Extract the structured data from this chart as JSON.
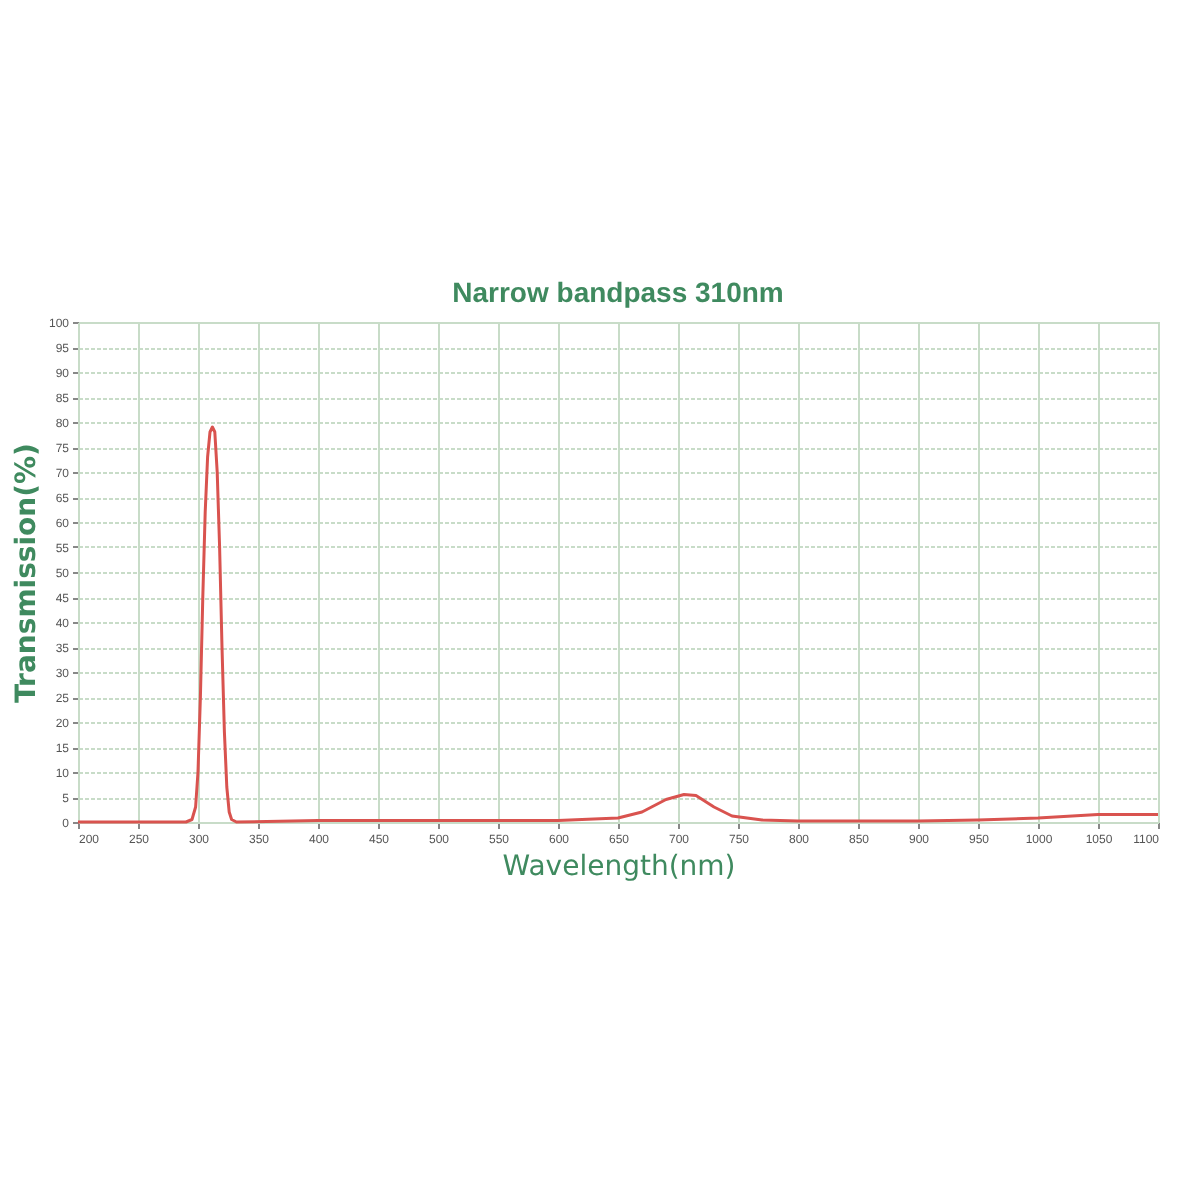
{
  "chart_data": {
    "type": "line",
    "title": "Narrow bandpass 310nm",
    "xlabel": "Wavelength(nm)",
    "ylabel": "Transmission(%)",
    "series": [
      {
        "color": "#d9534f",
        "x": [
          200,
          290,
          295,
          298,
          300,
          302,
          304,
          306,
          308,
          310,
          312,
          314,
          316,
          318,
          320,
          322,
          324,
          326,
          328,
          332,
          400,
          500,
          600,
          650,
          670,
          690,
          705,
          715,
          730,
          745,
          770,
          800,
          900,
          950,
          1000,
          1050,
          1100
        ],
        "values": [
          0,
          0,
          0.5,
          3,
          10,
          25,
          45,
          62,
          73,
          78,
          79,
          78,
          70,
          55,
          35,
          18,
          7,
          2,
          0.5,
          0,
          0.3,
          0.3,
          0.3,
          0.8,
          2,
          4.5,
          5.5,
          5.3,
          3,
          1.2,
          0.4,
          0.2,
          0.2,
          0.4,
          0.8,
          1.5,
          1.5
        ]
      }
    ],
    "xlim": [
      200,
      1100
    ],
    "xticks": [
      200,
      250,
      300,
      350,
      400,
      450,
      500,
      550,
      600,
      650,
      700,
      750,
      800,
      850,
      900,
      950,
      1000,
      1050,
      1100
    ],
    "ylim": [
      0,
      100
    ],
    "yticks": [
      0,
      5,
      10,
      15,
      20,
      25,
      30,
      35,
      40,
      45,
      50,
      55,
      60,
      65,
      70,
      75,
      80,
      85,
      90,
      95,
      100
    ],
    "grid": true,
    "marker": "none",
    "line_style": "solid"
  }
}
